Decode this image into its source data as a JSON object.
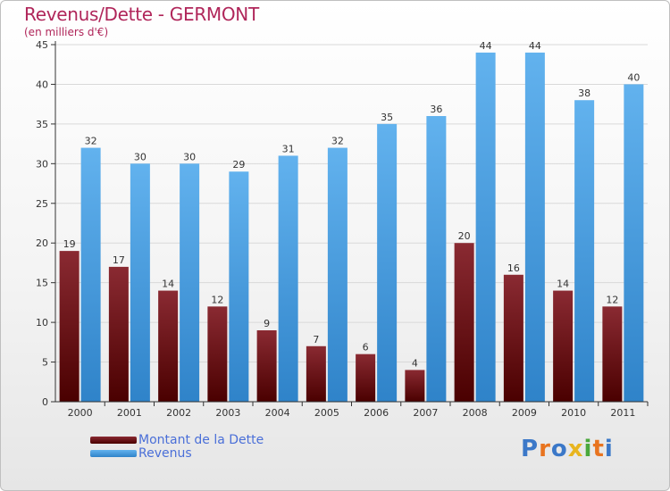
{
  "header": {
    "title": "Revenus/Dette - GERMONT",
    "subtitle": "(en milliers d'€)"
  },
  "logo": {
    "letters": [
      "P",
      "r",
      "o",
      "x",
      "i",
      "t",
      "i"
    ],
    "colors": [
      "#3b78c8",
      "#e8741f",
      "#3b78c8",
      "#e8b51f",
      "#4aa83c",
      "#e8741f",
      "#3b78c8"
    ]
  },
  "colors": {
    "dette_top": "#8a2a32",
    "dette_bottom": "#4a0000",
    "revenus_top": "#62b2ee",
    "revenus_bottom": "#2f83c9",
    "axis": "#333333",
    "grid": "#d9d9d9",
    "label": "#333333"
  },
  "chart_data": {
    "type": "bar",
    "title": "Revenus/Dette - GERMONT",
    "ylabel": "(en milliers d'€)",
    "xlabel": "",
    "ylim": [
      0,
      45
    ],
    "yticks": [
      0,
      5,
      10,
      15,
      20,
      25,
      30,
      35,
      40,
      45
    ],
    "grid": true,
    "legend_position": "bottom-left",
    "categories": [
      "2000",
      "2001",
      "2002",
      "2003",
      "2004",
      "2005",
      "2006",
      "2007",
      "2008",
      "2009",
      "2010",
      "2011"
    ],
    "series": [
      {
        "name": "Montant de la Dette",
        "values": [
          19,
          17,
          14,
          12,
          9,
          7,
          6,
          4,
          20,
          16,
          14,
          12
        ]
      },
      {
        "name": "Revenus",
        "values": [
          32,
          30,
          30,
          29,
          31,
          32,
          35,
          36,
          44,
          44,
          38,
          40
        ]
      }
    ]
  }
}
